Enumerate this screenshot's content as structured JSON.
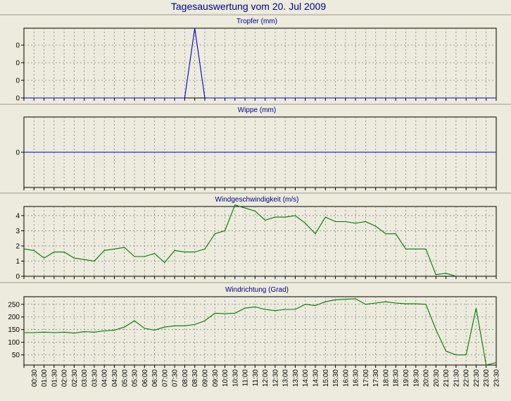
{
  "title": "Tagesauswertung vom 20. Jul 2009",
  "time_labels": [
    "00:30",
    "01:00",
    "01:30",
    "02:00",
    "02:30",
    "03:00",
    "03:30",
    "04:00",
    "04:30",
    "05:00",
    "05:30",
    "06:00",
    "06:30",
    "07:00",
    "07:30",
    "08:00",
    "08:30",
    "09:00",
    "09:30",
    "10:00",
    "10:30",
    "11:00",
    "11:30",
    "12:00",
    "12:30",
    "13:00",
    "13:30",
    "14:00",
    "14:30",
    "15:00",
    "15:30",
    "16:00",
    "16:30",
    "17:00",
    "17:30",
    "18:00",
    "18:30",
    "19:00",
    "19:30",
    "20:00",
    "20:30",
    "21:00",
    "21:30",
    "22:00",
    "22:30",
    "23:00",
    "23:30"
  ],
  "colors": {
    "background": "#ecebdd",
    "title": "#00008b",
    "blue_series": "#0000cc",
    "green_series": "#007700",
    "grid": "#888888"
  },
  "chart_data": [
    {
      "type": "line",
      "title": "Tropfer (mm)",
      "ytick_labels": [
        "0",
        "0",
        "0",
        "0"
      ],
      "grid": true,
      "series": [
        {
          "x": [
            "00:00",
            "08:00",
            "08:30",
            "09:00",
            "23:30"
          ],
          "values": [
            0,
            0,
            1,
            0,
            0
          ],
          "color": "#0000cc"
        }
      ],
      "ylim": [
        0,
        1
      ]
    },
    {
      "type": "line",
      "title": "Wippe (mm)",
      "ytick_labels": [
        "0"
      ],
      "grid": true,
      "series": [
        {
          "x": [
            "00:00",
            "23:30"
          ],
          "values": [
            0,
            0
          ],
          "color": "#0000cc"
        }
      ],
      "ylim": [
        -1,
        1
      ]
    },
    {
      "type": "line",
      "title": "Windgeschwindigkeit (m/s)",
      "ytick_labels": [
        "0",
        "1",
        "2",
        "3",
        "4"
      ],
      "grid": true,
      "ylim": [
        0,
        4.6
      ],
      "series": [
        {
          "color": "#007700",
          "x": [
            "00:00",
            "00:30",
            "01:00",
            "01:30",
            "02:00",
            "02:30",
            "03:00",
            "03:30",
            "04:00",
            "04:30",
            "05:00",
            "05:30",
            "06:00",
            "06:30",
            "07:00",
            "07:30",
            "08:00",
            "08:30",
            "09:00",
            "09:30",
            "10:00",
            "10:30",
            "11:00",
            "11:30",
            "12:00",
            "12:30",
            "13:00",
            "13:30",
            "14:00",
            "14:30",
            "15:00",
            "15:30",
            "16:00",
            "16:30",
            "17:00",
            "17:30",
            "18:00",
            "18:30",
            "19:00",
            "19:30",
            "20:00",
            "20:30",
            "21:00",
            "21:30"
          ],
          "values": [
            1.8,
            1.7,
            1.2,
            1.6,
            1.6,
            1.2,
            1.1,
            1.0,
            1.7,
            1.8,
            1.9,
            1.3,
            1.3,
            1.5,
            0.9,
            1.7,
            1.6,
            1.6,
            1.8,
            2.8,
            3.0,
            4.7,
            4.5,
            4.3,
            3.7,
            3.9,
            3.9,
            4.0,
            3.5,
            2.8,
            3.9,
            3.6,
            3.6,
            3.5,
            3.6,
            3.3,
            2.8,
            2.8,
            1.8,
            1.8,
            1.8,
            0.1,
            0.2,
            0.0
          ]
        }
      ]
    },
    {
      "type": "line",
      "title": "Windrichtung (Grad)",
      "ytick_labels": [
        "50",
        "100",
        "150",
        "200",
        "250"
      ],
      "grid": true,
      "ylim": [
        10,
        280
      ],
      "series": [
        {
          "color": "#007700",
          "x": [
            "00:00",
            "00:30",
            "01:00",
            "01:30",
            "02:00",
            "02:30",
            "03:00",
            "03:30",
            "04:00",
            "04:30",
            "05:00",
            "05:30",
            "06:00",
            "06:30",
            "07:00",
            "07:30",
            "08:00",
            "08:30",
            "09:00",
            "09:30",
            "10:00",
            "10:30",
            "11:00",
            "11:30",
            "12:00",
            "12:30",
            "13:00",
            "13:30",
            "14:00",
            "14:30",
            "15:00",
            "15:30",
            "16:00",
            "16:30",
            "17:00",
            "17:30",
            "18:00",
            "18:30",
            "19:00",
            "19:30",
            "20:00",
            "20:30",
            "21:00",
            "21:30",
            "22:00",
            "22:30",
            "23:00",
            "23:30"
          ],
          "values": [
            138,
            138,
            140,
            138,
            140,
            136,
            142,
            140,
            145,
            148,
            160,
            185,
            155,
            148,
            160,
            165,
            165,
            170,
            185,
            215,
            213,
            215,
            235,
            240,
            230,
            225,
            230,
            230,
            250,
            245,
            260,
            268,
            270,
            272,
            250,
            255,
            260,
            255,
            252,
            252,
            250,
            150,
            65,
            50,
            50,
            235,
            10,
            20
          ]
        }
      ]
    }
  ]
}
